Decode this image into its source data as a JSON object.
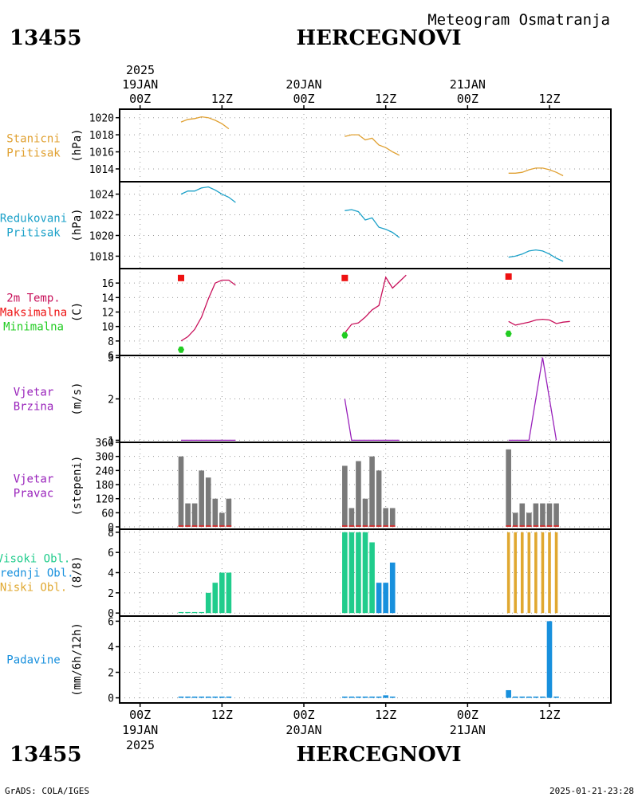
{
  "header": {
    "station_id": "13455",
    "station_name": "HERCEGNOVI",
    "chart_title": "Meteogram Osmatranja"
  },
  "footer": {
    "station_id": "13455",
    "station_name": "HERCEGNOVI",
    "credit": "GrADS: COLA/IGES",
    "timestamp": "2025-01-21-23:28"
  },
  "time_axis": {
    "top_year": "2025",
    "bottom_year": "2025",
    "days": [
      {
        "date": "19JAN",
        "hour_offset": 0
      },
      {
        "date": "20JAN",
        "hour_offset": 24
      },
      {
        "date": "21JAN",
        "hour_offset": 48
      }
    ],
    "hour_ticks": [
      {
        "label": "00Z",
        "h": 0
      },
      {
        "label": "12Z",
        "h": 12
      },
      {
        "label": "00Z",
        "h": 24
      },
      {
        "label": "12Z",
        "h": 36
      },
      {
        "label": "00Z",
        "h": 48
      },
      {
        "label": "12Z",
        "h": 60
      }
    ],
    "range_hours": [
      -3,
      69
    ]
  },
  "colors": {
    "pressure_station": "#e0a030",
    "pressure_reduced": "#1aa0c8",
    "temperature": "#c8105a",
    "tmax": "#ee1111",
    "tmin": "#22cc22",
    "wind": "#9922bb",
    "direction_bar": "#7a7a7a",
    "direction_base": "#d03030",
    "cloud_high": "#20cc8c",
    "cloud_mid": "#1890dd",
    "cloud_low": "#e0a830",
    "precip": "#1890dd"
  },
  "chart_data": [
    {
      "id": "station_pressure",
      "type": "line",
      "label_lines": [
        "Stanicni",
        "Pritisak"
      ],
      "ylabel": "(hPa)",
      "ylim": [
        1012.5,
        1021
      ],
      "yticks": [
        1014,
        1016,
        1018,
        1020
      ],
      "series": [
        {
          "color_key": "pressure_station",
          "segments": [
            [
              [
                6,
                1019.5
              ],
              [
                7,
                1019.8
              ],
              [
                8,
                1019.9
              ],
              [
                9,
                1020.1
              ],
              [
                10,
                1020.0
              ],
              [
                11,
                1019.7
              ],
              [
                12,
                1019.3
              ],
              [
                13,
                1018.7
              ]
            ],
            [
              [
                30,
                1017.8
              ],
              [
                31,
                1018.0
              ],
              [
                32,
                1018.0
              ],
              [
                33,
                1017.4
              ],
              [
                34,
                1017.6
              ],
              [
                35,
                1016.8
              ],
              [
                36,
                1016.5
              ],
              [
                37,
                1016.0
              ],
              [
                38,
                1015.6
              ]
            ],
            [
              [
                54,
                1013.5
              ],
              [
                55,
                1013.5
              ],
              [
                56,
                1013.6
              ],
              [
                57,
                1013.9
              ],
              [
                58,
                1014.1
              ],
              [
                59,
                1014.1
              ],
              [
                60,
                1013.9
              ],
              [
                61,
                1013.6
              ],
              [
                62,
                1013.2
              ]
            ]
          ]
        }
      ]
    },
    {
      "id": "reduced_pressure",
      "type": "line",
      "label_lines": [
        "Redukovani",
        "Pritisak"
      ],
      "ylabel": "(hPa)",
      "ylim": [
        1016.8,
        1025.2
      ],
      "yticks": [
        1018,
        1020,
        1022,
        1024
      ],
      "series": [
        {
          "color_key": "pressure_reduced",
          "segments": [
            [
              [
                6,
                1024.0
              ],
              [
                7,
                1024.3
              ],
              [
                8,
                1024.3
              ],
              [
                9,
                1024.6
              ],
              [
                10,
                1024.7
              ],
              [
                11,
                1024.4
              ],
              [
                12,
                1024.0
              ],
              [
                13,
                1023.7
              ],
              [
                14,
                1023.2
              ]
            ],
            [
              [
                30,
                1022.4
              ],
              [
                31,
                1022.5
              ],
              [
                32,
                1022.3
              ],
              [
                33,
                1021.5
              ],
              [
                34,
                1021.7
              ],
              [
                35,
                1020.8
              ],
              [
                36,
                1020.6
              ],
              [
                37,
                1020.3
              ],
              [
                38,
                1019.8
              ]
            ],
            [
              [
                54,
                1017.9
              ],
              [
                55,
                1018.0
              ],
              [
                56,
                1018.2
              ],
              [
                57,
                1018.5
              ],
              [
                58,
                1018.6
              ],
              [
                59,
                1018.5
              ],
              [
                60,
                1018.2
              ],
              [
                61,
                1017.8
              ],
              [
                62,
                1017.5
              ]
            ]
          ]
        }
      ]
    },
    {
      "id": "temperature",
      "type": "line",
      "label_lines": [
        "2m Temp.",
        "Maksimalna",
        "Minimalna"
      ],
      "ylabel": "(C)",
      "ylim": [
        6,
        18
      ],
      "yticks": [
        6,
        8,
        10,
        12,
        14,
        16
      ],
      "series": [
        {
          "color_key": "temperature",
          "segments": [
            [
              [
                6,
                8.0
              ],
              [
                7,
                8.6
              ],
              [
                8,
                9.6
              ],
              [
                9,
                11.3
              ],
              [
                10,
                13.8
              ],
              [
                11,
                16.0
              ],
              [
                12,
                16.4
              ],
              [
                13,
                16.4
              ],
              [
                14,
                15.7
              ]
            ],
            [
              [
                30,
                9.1
              ],
              [
                31,
                10.3
              ],
              [
                32,
                10.5
              ],
              [
                33,
                11.3
              ],
              [
                34,
                12.3
              ],
              [
                35,
                12.9
              ],
              [
                36,
                16.8
              ],
              [
                37,
                15.3
              ],
              [
                38,
                16.2
              ],
              [
                39,
                17.1
              ]
            ],
            [
              [
                54,
                10.7
              ],
              [
                55,
                10.2
              ],
              [
                56,
                10.4
              ],
              [
                57,
                10.6
              ],
              [
                58,
                10.9
              ],
              [
                59,
                11.0
              ],
              [
                60,
                10.9
              ],
              [
                61,
                10.4
              ],
              [
                62,
                10.6
              ],
              [
                63,
                10.7
              ]
            ]
          ]
        }
      ],
      "markers": [
        {
          "kind": "max",
          "color_key": "tmax",
          "points": [
            [
              6,
              16.7
            ],
            [
              30,
              16.7
            ],
            [
              54,
              16.9
            ]
          ]
        },
        {
          "kind": "min",
          "color_key": "tmin",
          "points": [
            [
              6,
              6.8
            ],
            [
              30,
              8.8
            ],
            [
              54,
              9.0
            ]
          ]
        }
      ]
    },
    {
      "id": "wind_speed",
      "type": "line",
      "label_lines": [
        "Vjetar",
        "Brzina"
      ],
      "ylabel": "(m/s)",
      "ylim": [
        0.95,
        3.05
      ],
      "yticks": [
        1,
        2,
        3
      ],
      "series": [
        {
          "color_key": "wind",
          "segments": [
            [
              [
                6,
                1
              ],
              [
                14,
                1
              ]
            ],
            [
              [
                30,
                2
              ],
              [
                31,
                1
              ],
              [
                38,
                1
              ]
            ],
            [
              [
                54,
                1
              ],
              [
                57,
                1
              ],
              [
                59,
                3
              ],
              [
                61,
                1
              ]
            ]
          ]
        }
      ]
    },
    {
      "id": "wind_direction",
      "type": "bar",
      "label_lines": [
        "Vjetar",
        "Pravac"
      ],
      "ylabel": "(stepeni)",
      "ylim": [
        -10,
        360
      ],
      "yticks": [
        0,
        60,
        120,
        180,
        240,
        300,
        360
      ],
      "bar_color_key": "direction_bar",
      "base_color_key": "direction_base",
      "bars": [
        [
          6,
          300
        ],
        [
          7,
          100
        ],
        [
          8,
          100
        ],
        [
          9,
          240
        ],
        [
          10,
          210
        ],
        [
          11,
          120
        ],
        [
          12,
          60
        ],
        [
          13,
          120
        ],
        [
          30,
          260
        ],
        [
          31,
          80
        ],
        [
          32,
          280
        ],
        [
          33,
          120
        ],
        [
          34,
          300
        ],
        [
          35,
          240
        ],
        [
          36,
          80
        ],
        [
          37,
          80
        ],
        [
          54,
          330
        ],
        [
          55,
          60
        ],
        [
          56,
          100
        ],
        [
          57,
          60
        ],
        [
          58,
          100
        ],
        [
          59,
          100
        ],
        [
          60,
          100
        ],
        [
          61,
          100
        ]
      ]
    },
    {
      "id": "cloud_cover",
      "type": "bar",
      "label_lines": [
        "Visoki Obl.",
        "Srednji Obl.",
        "Niski Obl."
      ],
      "label_color_keys": [
        "cloud_high",
        "cloud_mid",
        "cloud_low"
      ],
      "ylabel": "(8/8)",
      "ylim": [
        -0.3,
        8.3
      ],
      "yticks": [
        0,
        2,
        4,
        6,
        8
      ],
      "bars": [
        [
          6,
          0.1,
          "cloud_high"
        ],
        [
          7,
          0.1,
          "cloud_high"
        ],
        [
          8,
          0.1,
          "cloud_high"
        ],
        [
          9,
          0.1,
          "cloud_high"
        ],
        [
          10,
          2,
          "cloud_high"
        ],
        [
          11,
          3,
          "cloud_high"
        ],
        [
          12,
          4,
          "cloud_high"
        ],
        [
          13,
          4,
          "cloud_high"
        ],
        [
          30,
          8,
          "cloud_high"
        ],
        [
          31,
          8,
          "cloud_high"
        ],
        [
          32,
          8,
          "cloud_high"
        ],
        [
          33,
          8,
          "cloud_high"
        ],
        [
          34,
          7,
          "cloud_high"
        ],
        [
          35,
          3,
          "cloud_mid"
        ],
        [
          36,
          3,
          "cloud_mid"
        ],
        [
          37,
          5,
          "cloud_mid"
        ],
        [
          54,
          8,
          "cloud_low"
        ],
        [
          55,
          8,
          "cloud_low"
        ],
        [
          56,
          8,
          "cloud_low"
        ],
        [
          57,
          8,
          "cloud_low"
        ],
        [
          58,
          8,
          "cloud_low"
        ],
        [
          59,
          8,
          "cloud_low"
        ],
        [
          60,
          8,
          "cloud_low"
        ],
        [
          61,
          8,
          "cloud_low"
        ]
      ]
    },
    {
      "id": "precipitation",
      "type": "bar",
      "label_lines": [
        "Padavine"
      ],
      "ylabel": "(mm/6h/12h)",
      "ylim": [
        -0.4,
        6.4
      ],
      "yticks": [
        0,
        2,
        4,
        6
      ],
      "bar_color_key": "precip",
      "bars": [
        [
          6,
          0.1
        ],
        [
          7,
          0.1
        ],
        [
          8,
          0.1
        ],
        [
          9,
          0.1
        ],
        [
          10,
          0.1
        ],
        [
          11,
          0.1
        ],
        [
          12,
          0.1
        ],
        [
          13,
          0.1
        ],
        [
          30,
          0.1
        ],
        [
          31,
          0.1
        ],
        [
          32,
          0.1
        ],
        [
          33,
          0.1
        ],
        [
          34,
          0.1
        ],
        [
          35,
          0.1
        ],
        [
          36,
          0.2
        ],
        [
          37,
          0.1
        ],
        [
          54,
          0.6
        ],
        [
          55,
          0.1
        ],
        [
          56,
          0.1
        ],
        [
          57,
          0.1
        ],
        [
          58,
          0.1
        ],
        [
          59,
          0.1
        ],
        [
          60,
          6.0
        ],
        [
          61,
          0.1
        ]
      ]
    }
  ]
}
